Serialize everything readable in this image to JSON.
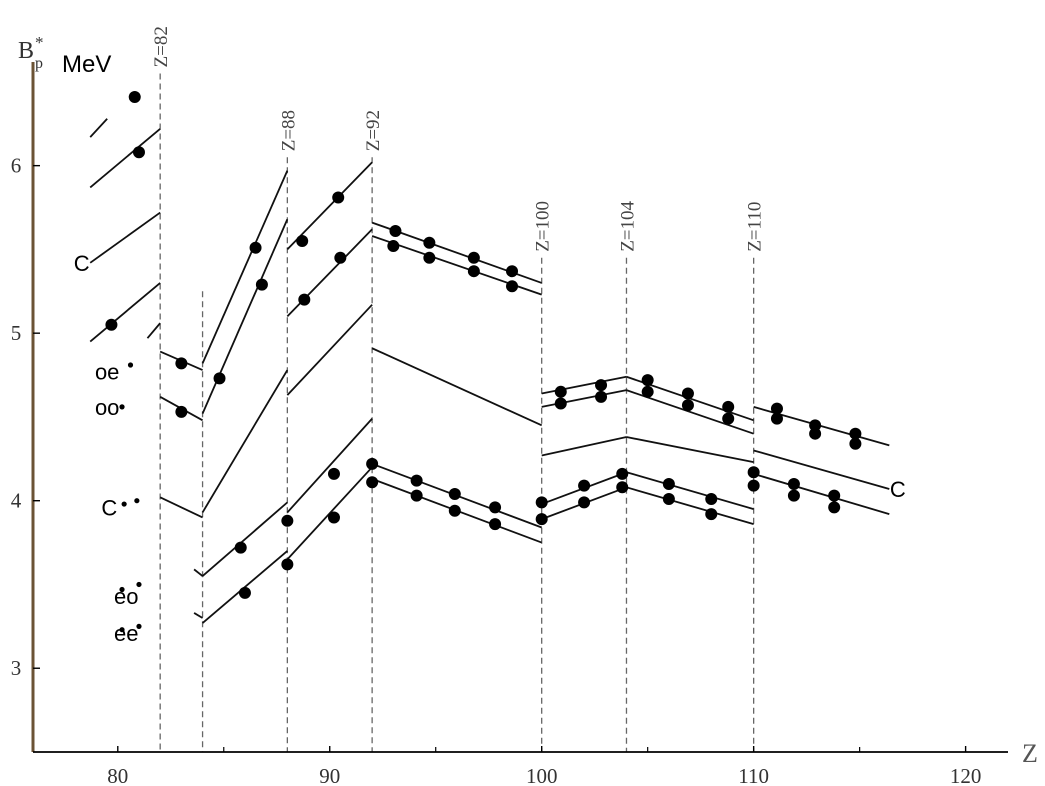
{
  "chart_data": {
    "type": "line",
    "title": "",
    "xlabel": "Z",
    "ylabel": "MeV",
    "y_symbol": "B",
    "y_symbol_sup": "*",
    "y_symbol_sub": "p",
    "xlim": [
      76,
      122
    ],
    "ylim": [
      2.5,
      6.75
    ],
    "x_ticks": [
      {
        "value": 80,
        "label": "80"
      },
      {
        "value": 90,
        "label": "90"
      },
      {
        "value": 100,
        "label": "100"
      },
      {
        "value": 110,
        "label": "110"
      },
      {
        "value": 120,
        "label": "120"
      }
    ],
    "y_ticks": [
      {
        "value": 3,
        "label": "3"
      },
      {
        "value": 4,
        "label": "4"
      },
      {
        "value": 5,
        "label": "5"
      },
      {
        "value": 6,
        "label": "6"
      }
    ],
    "shell_lines": [
      {
        "z": 82,
        "label": "Z=82",
        "y_top": 6.55
      },
      {
        "z": 84,
        "label": "",
        "y_top": 5.25
      },
      {
        "z": 88,
        "label": "Z=88",
        "y_top": 6.05
      },
      {
        "z": 92,
        "label": "Z=92",
        "y_top": 6.05
      },
      {
        "z": 100,
        "label": "Z=100",
        "y_top": 5.45
      },
      {
        "z": 104,
        "label": "Z=104",
        "y_top": 5.45
      },
      {
        "z": 110,
        "label": "Z=110",
        "y_top": 5.45
      }
    ],
    "series_labels": [
      {
        "text": "C",
        "x": 78.3,
        "y": 5.42
      },
      {
        "text": "oe",
        "x": 79.5,
        "y": 4.77
      },
      {
        "text": "oo",
        "x": 79.5,
        "y": 4.56
      },
      {
        "text": "C",
        "x": 79.6,
        "y": 3.96
      },
      {
        "text": "eo",
        "x": 80.4,
        "y": 3.43
      },
      {
        "text": "ee",
        "x": 80.4,
        "y": 3.21
      },
      {
        "text": "C",
        "x": 116.8,
        "y": 4.07
      }
    ],
    "series_segments": [
      {
        "points": [
          [
            78.7,
            6.17
          ],
          [
            79.5,
            6.28
          ]
        ]
      },
      {
        "points": [
          [
            78.7,
            5.87
          ],
          [
            82,
            6.22
          ]
        ]
      },
      {
        "points": [
          [
            78.7,
            5.42
          ],
          [
            82,
            5.72
          ]
        ]
      },
      {
        "points": [
          [
            78.7,
            4.95
          ],
          [
            82,
            5.3
          ]
        ]
      },
      {
        "points": [
          [
            81.4,
            4.97
          ],
          [
            82,
            5.06
          ]
        ]
      },
      {
        "points": [
          [
            82,
            4.89
          ],
          [
            84,
            4.78
          ]
        ]
      },
      {
        "points": [
          [
            82,
            4.62
          ],
          [
            84,
            4.48
          ]
        ]
      },
      {
        "points": [
          [
            82,
            4.02
          ],
          [
            84,
            3.9
          ]
        ]
      },
      {
        "points": [
          [
            83.6,
            3.59
          ],
          [
            84,
            3.55
          ]
        ]
      },
      {
        "points": [
          [
            83.6,
            3.33
          ],
          [
            84,
            3.3
          ]
        ]
      },
      {
        "points": [
          [
            84,
            4.82
          ],
          [
            88,
            5.97
          ]
        ]
      },
      {
        "points": [
          [
            84,
            4.52
          ],
          [
            88,
            5.68
          ]
        ]
      },
      {
        "points": [
          [
            84,
            3.93
          ],
          [
            88,
            4.78
          ]
        ]
      },
      {
        "points": [
          [
            84,
            3.55
          ],
          [
            88,
            3.99
          ]
        ]
      },
      {
        "points": [
          [
            84,
            3.27
          ],
          [
            88,
            3.7
          ]
        ]
      },
      {
        "points": [
          [
            88,
            5.5
          ],
          [
            92,
            6.02
          ]
        ]
      },
      {
        "points": [
          [
            88,
            5.1
          ],
          [
            92,
            5.62
          ]
        ]
      },
      {
        "points": [
          [
            88,
            4.63
          ],
          [
            92,
            5.17
          ]
        ]
      },
      {
        "points": [
          [
            88,
            3.93
          ],
          [
            92,
            4.49
          ]
        ]
      },
      {
        "points": [
          [
            88,
            3.65
          ],
          [
            92,
            4.2
          ]
        ]
      },
      {
        "points": [
          [
            92,
            5.66
          ],
          [
            100,
            5.3
          ]
        ]
      },
      {
        "points": [
          [
            92,
            5.58
          ],
          [
            100,
            5.23
          ]
        ]
      },
      {
        "points": [
          [
            92,
            4.91
          ],
          [
            100,
            4.45
          ]
        ]
      },
      {
        "points": [
          [
            92,
            4.22
          ],
          [
            100,
            3.84
          ]
        ]
      },
      {
        "points": [
          [
            92,
            4.13
          ],
          [
            100,
            3.75
          ]
        ]
      },
      {
        "points": [
          [
            100,
            4.64
          ],
          [
            104,
            4.74
          ]
        ]
      },
      {
        "points": [
          [
            100,
            4.56
          ],
          [
            104,
            4.66
          ]
        ]
      },
      {
        "points": [
          [
            100,
            4.27
          ],
          [
            104,
            4.38
          ]
        ]
      },
      {
        "points": [
          [
            100,
            3.98
          ],
          [
            104,
            4.17
          ]
        ]
      },
      {
        "points": [
          [
            100,
            3.89
          ],
          [
            104,
            4.08
          ]
        ]
      },
      {
        "points": [
          [
            104,
            4.74
          ],
          [
            110,
            4.48
          ]
        ]
      },
      {
        "points": [
          [
            104,
            4.66
          ],
          [
            110,
            4.4
          ]
        ]
      },
      {
        "points": [
          [
            104,
            4.38
          ],
          [
            110,
            4.23
          ]
        ]
      },
      {
        "points": [
          [
            104,
            4.17
          ],
          [
            110,
            3.95
          ]
        ]
      },
      {
        "points": [
          [
            104,
            4.08
          ],
          [
            110,
            3.86
          ]
        ]
      },
      {
        "points": [
          [
            110,
            4.56
          ],
          [
            116.4,
            4.33
          ]
        ]
      },
      {
        "points": [
          [
            110,
            4.3
          ],
          [
            116.4,
            4.07
          ]
        ]
      },
      {
        "points": [
          [
            110,
            4.16
          ],
          [
            116.4,
            3.92
          ]
        ]
      }
    ],
    "data_points": [
      [
        80.8,
        6.41
      ],
      [
        81.0,
        6.08
      ],
      [
        79.7,
        5.05
      ],
      [
        83.0,
        4.82
      ],
      [
        83.0,
        4.53
      ],
      [
        84.8,
        4.73
      ],
      [
        86.5,
        5.51
      ],
      [
        86.8,
        5.29
      ],
      [
        85.8,
        3.72
      ],
      [
        86.0,
        3.45
      ],
      [
        88.0,
        3.88
      ],
      [
        88.0,
        3.62
      ],
      [
        88.7,
        5.55
      ],
      [
        88.8,
        5.2
      ],
      [
        90.4,
        5.81
      ],
      [
        90.5,
        5.45
      ],
      [
        90.2,
        4.16
      ],
      [
        90.2,
        3.9
      ],
      [
        92.0,
        4.22
      ],
      [
        92.0,
        4.11
      ],
      [
        93.1,
        5.61
      ],
      [
        93.0,
        5.52
      ],
      [
        94.7,
        5.54
      ],
      [
        94.7,
        5.45
      ],
      [
        96.8,
        5.45
      ],
      [
        96.8,
        5.37
      ],
      [
        98.6,
        5.37
      ],
      [
        98.6,
        5.28
      ],
      [
        94.1,
        4.12
      ],
      [
        94.1,
        4.03
      ],
      [
        95.9,
        4.04
      ],
      [
        95.9,
        3.94
      ],
      [
        97.8,
        3.96
      ],
      [
        97.8,
        3.86
      ],
      [
        100.0,
        3.99
      ],
      [
        100.0,
        3.89
      ],
      [
        100.9,
        4.65
      ],
      [
        100.9,
        4.58
      ],
      [
        102.8,
        4.69
      ],
      [
        102.8,
        4.62
      ],
      [
        102.0,
        4.09
      ],
      [
        102.0,
        3.99
      ],
      [
        103.8,
        4.16
      ],
      [
        103.8,
        4.08
      ],
      [
        105.0,
        4.72
      ],
      [
        105.0,
        4.65
      ],
      [
        106.9,
        4.64
      ],
      [
        106.9,
        4.57
      ],
      [
        108.8,
        4.56
      ],
      [
        108.8,
        4.49
      ],
      [
        106.0,
        4.1
      ],
      [
        106.0,
        4.01
      ],
      [
        108.0,
        4.01
      ],
      [
        108.0,
        3.92
      ],
      [
        110.0,
        4.17
      ],
      [
        110.0,
        4.09
      ],
      [
        111.1,
        4.55
      ],
      [
        111.1,
        4.49
      ],
      [
        112.9,
        4.45
      ],
      [
        112.9,
        4.4
      ],
      [
        114.8,
        4.4
      ],
      [
        114.8,
        4.34
      ],
      [
        111.9,
        4.1
      ],
      [
        111.9,
        4.03
      ],
      [
        113.8,
        4.03
      ],
      [
        113.8,
        3.96
      ]
    ],
    "leader_dots": [
      [
        80.6,
        4.81
      ],
      [
        80.2,
        4.56
      ],
      [
        80.9,
        4.0
      ],
      [
        80.3,
        3.98
      ],
      [
        81.0,
        3.5
      ],
      [
        80.2,
        3.47
      ],
      [
        81.0,
        3.25
      ],
      [
        80.2,
        3.23
      ]
    ],
    "grid": false,
    "legend": "none"
  }
}
